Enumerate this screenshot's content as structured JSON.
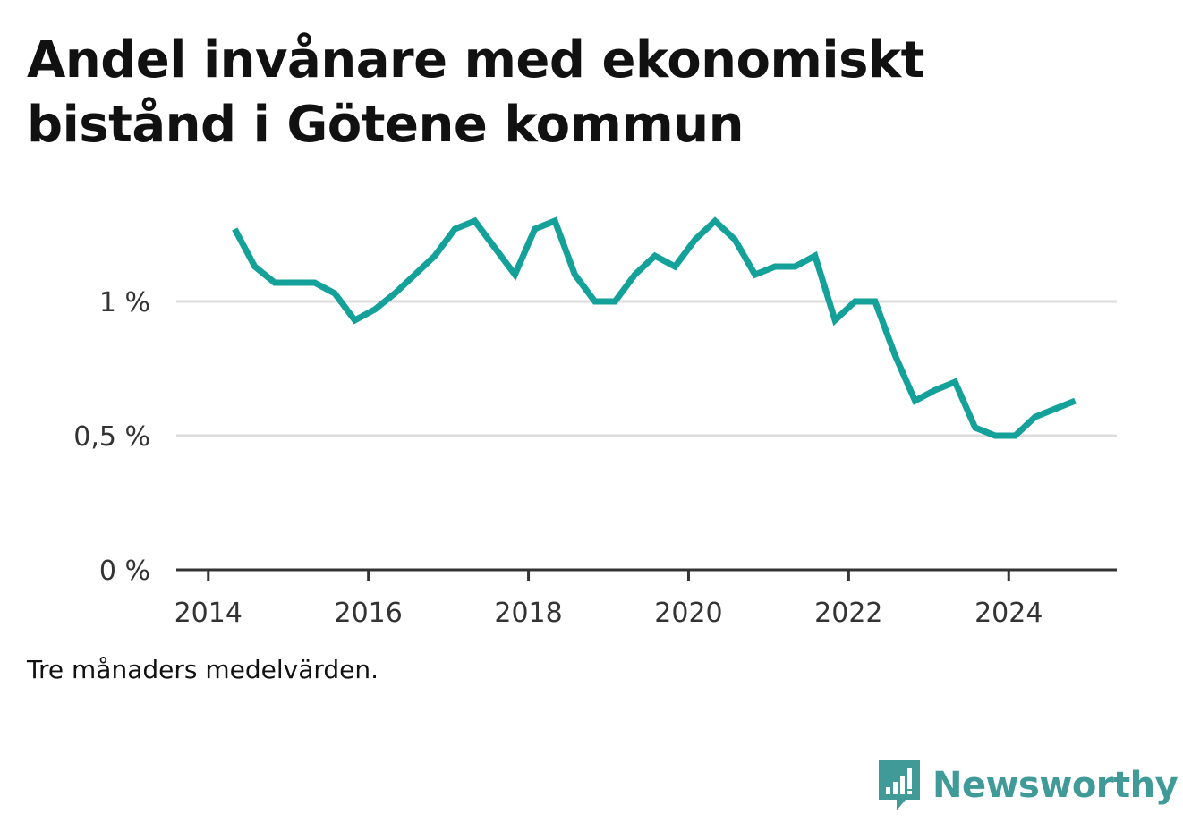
{
  "title": "Andel invånare med ekonomiskt bistånd i Götene kommun",
  "note": "Tre månaders medelvärden.",
  "brand": {
    "name": "Newsworthy",
    "icon": "bar-chart-speech-bubble-icon",
    "color": "#3f9a98"
  },
  "colors": {
    "line": "#13a19a",
    "grid": "#dddddd",
    "axis": "#333333"
  },
  "chart_data": {
    "type": "line",
    "title": "Andel invånare med ekonomiskt bistånd i Götene kommun",
    "xlabel": "",
    "ylabel": "",
    "x_ticks": [
      "2014",
      "2016",
      "2018",
      "2020",
      "2022",
      "2024"
    ],
    "x_tick_values": [
      2014,
      2016,
      2018,
      2020,
      2022,
      2024
    ],
    "y_ticks": [
      "0 %",
      "0,5 %",
      "1 %"
    ],
    "y_tick_values": [
      0,
      0.5,
      1.0
    ],
    "xlim": [
      2013.6,
      2025.35
    ],
    "ylim": [
      0,
      1.5
    ],
    "grid": true,
    "series": [
      {
        "x": [
          2014.33,
          2014.58,
          2014.83,
          2015.08,
          2015.33,
          2015.58,
          2015.83,
          2016.08,
          2016.33,
          2016.58,
          2016.83,
          2017.08,
          2017.33,
          2017.58,
          2017.83,
          2018.08,
          2018.33,
          2018.58,
          2018.83,
          2019.08,
          2019.33,
          2019.58,
          2019.83,
          2020.08,
          2020.33,
          2020.58,
          2020.83,
          2021.08,
          2021.33,
          2021.58,
          2021.83,
          2022.08,
          2022.33,
          2022.58,
          2022.83,
          2023.08,
          2023.33,
          2023.58,
          2023.83,
          2024.08,
          2024.33,
          2024.58,
          2024.83
        ],
        "values": [
          1.27,
          1.13,
          1.07,
          1.07,
          1.07,
          1.03,
          0.93,
          0.97,
          1.03,
          1.1,
          1.17,
          1.27,
          1.3,
          1.2,
          1.1,
          1.27,
          1.3,
          1.1,
          1.0,
          1.0,
          1.1,
          1.17,
          1.13,
          1.23,
          1.3,
          1.23,
          1.1,
          1.13,
          1.13,
          1.17,
          0.93,
          1.0,
          1.0,
          0.8,
          0.63,
          0.67,
          0.7,
          0.53,
          0.5,
          0.5,
          0.57,
          0.6,
          0.63
        ]
      }
    ]
  }
}
